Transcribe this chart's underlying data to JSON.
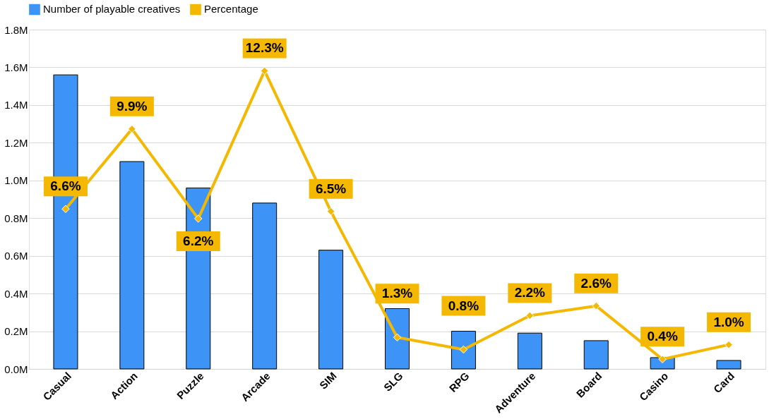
{
  "chart_data": {
    "type": "bar",
    "categories": [
      "Casual",
      "Action",
      "Puzzle",
      "Arcade",
      "SIM",
      "SLG",
      "RPG",
      "Adventure",
      "Board",
      "Casino",
      "Card"
    ],
    "series": [
      {
        "name": "Number of playable creatives",
        "color": "#3d94f6",
        "values": [
          1560000,
          1100000,
          960000,
          880000,
          630000,
          320000,
          200000,
          190000,
          150000,
          60000,
          45000
        ]
      },
      {
        "name": "Percentage",
        "type": "line",
        "axis": "y2",
        "color": "#f5b800",
        "values": [
          6.6,
          9.9,
          6.2,
          12.3,
          6.5,
          1.3,
          0.8,
          2.2,
          2.6,
          0.4,
          1.0
        ],
        "value_labels": [
          "6.6%",
          "9.9%",
          "6.2%",
          "12.3%",
          "6.5%",
          "1.3%",
          "0.8%",
          "2.2%",
          "2.6%",
          "0.4%",
          "1.0%"
        ]
      }
    ],
    "ylim": [
      0,
      1800000
    ],
    "yticks": [
      {
        "value": 0,
        "label": "0.0M"
      },
      {
        "value": 200000,
        "label": "0.2M"
      },
      {
        "value": 400000,
        "label": "0.4M"
      },
      {
        "value": 600000,
        "label": "0.6M"
      },
      {
        "value": 800000,
        "label": "0.8M"
      },
      {
        "value": 1000000,
        "label": "1.0M"
      },
      {
        "value": 1200000,
        "label": "1.2M"
      },
      {
        "value": 1400000,
        "label": "1.4M"
      },
      {
        "value": 1600000,
        "label": "1.6M"
      },
      {
        "value": 1800000,
        "label": "1.8M"
      }
    ],
    "y2lim": [
      0,
      14
    ],
    "tick_labels": "xy",
    "grid": "y",
    "legend": "top",
    "marker": "diamond",
    "line_style": "solid"
  }
}
